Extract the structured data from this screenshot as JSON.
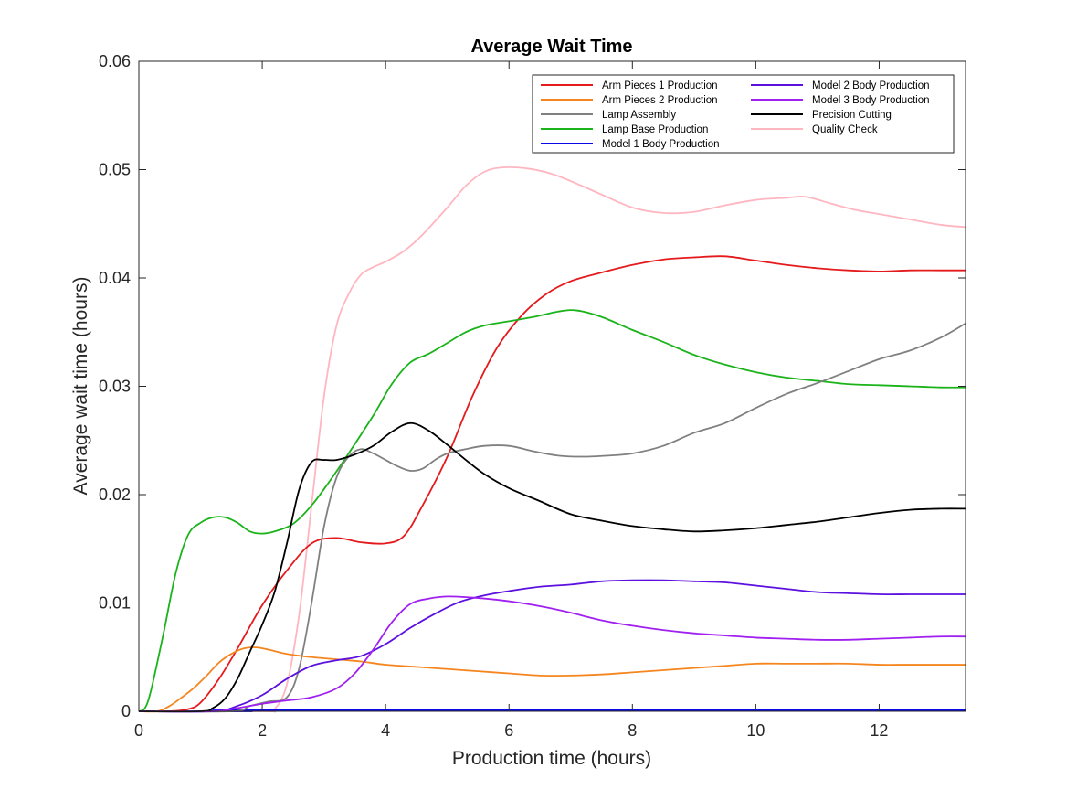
{
  "chart_data": {
    "type": "line",
    "title": "Average Wait Time",
    "xlabel": "Production time (hours)",
    "ylabel": "Average wait time (hours)",
    "xlim": [
      0,
      13.4
    ],
    "ylim": [
      0,
      0.06
    ],
    "xticks": [
      0,
      2,
      4,
      6,
      8,
      10,
      12
    ],
    "xtick_labels": [
      "0",
      "2",
      "4",
      "6",
      "8",
      "10",
      "12"
    ],
    "yticks": [
      0,
      0.01,
      0.02,
      0.03,
      0.04,
      0.05,
      0.06
    ],
    "ytick_labels": [
      "0",
      "0.01",
      "0.02",
      "0.03",
      "0.04",
      "0.05",
      "0.06"
    ],
    "grid": false,
    "legend_position": "top-right",
    "series": [
      {
        "name": "Arm Pieces 1 Production",
        "color": "#e41a1c",
        "points": [
          [
            0,
            0
          ],
          [
            0.5,
            0
          ],
          [
            0.8,
            0.0002
          ],
          [
            1.0,
            0.0008
          ],
          [
            1.3,
            0.003
          ],
          [
            1.6,
            0.0058
          ],
          [
            2.0,
            0.0098
          ],
          [
            2.4,
            0.013
          ],
          [
            2.8,
            0.0155
          ],
          [
            3.2,
            0.016
          ],
          [
            3.6,
            0.0156
          ],
          [
            4.0,
            0.0155
          ],
          [
            4.3,
            0.0162
          ],
          [
            4.6,
            0.019
          ],
          [
            5.0,
            0.0235
          ],
          [
            5.4,
            0.029
          ],
          [
            5.8,
            0.0335
          ],
          [
            6.2,
            0.0365
          ],
          [
            6.6,
            0.0385
          ],
          [
            7.0,
            0.0397
          ],
          [
            7.5,
            0.0405
          ],
          [
            8.0,
            0.0412
          ],
          [
            8.5,
            0.0417
          ],
          [
            9.0,
            0.0419
          ],
          [
            9.5,
            0.042
          ],
          [
            10.0,
            0.0416
          ],
          [
            10.5,
            0.0412
          ],
          [
            11.0,
            0.0409
          ],
          [
            11.5,
            0.0407
          ],
          [
            12.0,
            0.0406
          ],
          [
            12.5,
            0.0407
          ],
          [
            13.0,
            0.0407
          ],
          [
            13.4,
            0.0407
          ]
        ]
      },
      {
        "name": "Arm Pieces 2 Production",
        "color": "#f5861f",
        "points": [
          [
            0,
            0
          ],
          [
            0.3,
            0
          ],
          [
            0.5,
            0.0005
          ],
          [
            0.7,
            0.0013
          ],
          [
            0.9,
            0.0022
          ],
          [
            1.1,
            0.0033
          ],
          [
            1.3,
            0.0045
          ],
          [
            1.5,
            0.0053
          ],
          [
            1.7,
            0.0058
          ],
          [
            1.9,
            0.0059
          ],
          [
            2.1,
            0.0057
          ],
          [
            2.4,
            0.0053
          ],
          [
            2.8,
            0.005
          ],
          [
            3.2,
            0.0048
          ],
          [
            3.6,
            0.0046
          ],
          [
            4.0,
            0.0043
          ],
          [
            4.5,
            0.0041
          ],
          [
            5.0,
            0.0039
          ],
          [
            5.5,
            0.0037
          ],
          [
            6.0,
            0.0035
          ],
          [
            6.5,
            0.0033
          ],
          [
            7.0,
            0.0033
          ],
          [
            7.5,
            0.0034
          ],
          [
            8.0,
            0.0036
          ],
          [
            8.5,
            0.0038
          ],
          [
            9.0,
            0.004
          ],
          [
            9.5,
            0.0042
          ],
          [
            10.0,
            0.0044
          ],
          [
            10.5,
            0.0044
          ],
          [
            11.0,
            0.0044
          ],
          [
            11.5,
            0.0044
          ],
          [
            12.0,
            0.0043
          ],
          [
            12.5,
            0.0043
          ],
          [
            13.0,
            0.0043
          ],
          [
            13.4,
            0.0043
          ]
        ]
      },
      {
        "name": "Lamp Assembly",
        "color": "#808080",
        "points": [
          [
            0,
            0
          ],
          [
            1.5,
            0
          ],
          [
            1.8,
            0.0005
          ],
          [
            2.1,
            0.0009
          ],
          [
            2.4,
            0.0013
          ],
          [
            2.6,
            0.004
          ],
          [
            2.8,
            0.01
          ],
          [
            3.0,
            0.017
          ],
          [
            3.2,
            0.0215
          ],
          [
            3.4,
            0.0235
          ],
          [
            3.6,
            0.0242
          ],
          [
            3.8,
            0.0238
          ],
          [
            4.0,
            0.0232
          ],
          [
            4.2,
            0.0226
          ],
          [
            4.4,
            0.0222
          ],
          [
            4.6,
            0.0224
          ],
          [
            4.8,
            0.0232
          ],
          [
            5.0,
            0.0238
          ],
          [
            5.3,
            0.0242
          ],
          [
            5.6,
            0.0245
          ],
          [
            6.0,
            0.0245
          ],
          [
            6.4,
            0.024
          ],
          [
            6.8,
            0.0236
          ],
          [
            7.2,
            0.0235
          ],
          [
            7.6,
            0.0236
          ],
          [
            8.0,
            0.0238
          ],
          [
            8.5,
            0.0245
          ],
          [
            9.0,
            0.0257
          ],
          [
            9.5,
            0.0266
          ],
          [
            10.0,
            0.028
          ],
          [
            10.5,
            0.0293
          ],
          [
            11.0,
            0.0303
          ],
          [
            11.5,
            0.0314
          ],
          [
            12.0,
            0.0325
          ],
          [
            12.5,
            0.0333
          ],
          [
            13.0,
            0.0345
          ],
          [
            13.4,
            0.0358
          ]
        ]
      },
      {
        "name": "Lamp Base Production",
        "color": "#1ab31a",
        "points": [
          [
            0,
            0
          ],
          [
            0.1,
            0.0003
          ],
          [
            0.2,
            0.002
          ],
          [
            0.4,
            0.0072
          ],
          [
            0.6,
            0.0128
          ],
          [
            0.8,
            0.0163
          ],
          [
            1.0,
            0.0174
          ],
          [
            1.2,
            0.0179
          ],
          [
            1.4,
            0.0179
          ],
          [
            1.6,
            0.0174
          ],
          [
            1.8,
            0.0166
          ],
          [
            2.0,
            0.0164
          ],
          [
            2.2,
            0.0166
          ],
          [
            2.5,
            0.0173
          ],
          [
            2.8,
            0.019
          ],
          [
            3.1,
            0.0213
          ],
          [
            3.4,
            0.0238
          ],
          [
            3.8,
            0.0273
          ],
          [
            4.1,
            0.0302
          ],
          [
            4.4,
            0.0322
          ],
          [
            4.7,
            0.033
          ],
          [
            5.0,
            0.034
          ],
          [
            5.3,
            0.035
          ],
          [
            5.6,
            0.0356
          ],
          [
            6.0,
            0.036
          ],
          [
            6.4,
            0.0364
          ],
          [
            6.8,
            0.0369
          ],
          [
            7.1,
            0.037
          ],
          [
            7.5,
            0.0364
          ],
          [
            8.0,
            0.0352
          ],
          [
            8.5,
            0.0341
          ],
          [
            9.0,
            0.0329
          ],
          [
            9.5,
            0.032
          ],
          [
            10.0,
            0.0313
          ],
          [
            10.5,
            0.0308
          ],
          [
            11.0,
            0.0305
          ],
          [
            11.5,
            0.0302
          ],
          [
            12.0,
            0.0301
          ],
          [
            12.5,
            0.03
          ],
          [
            13.0,
            0.0299
          ],
          [
            13.4,
            0.0299
          ]
        ]
      },
      {
        "name": "Model 1 Body Production",
        "color": "#0a0ae6",
        "points": [
          [
            0,
            0
          ],
          [
            1.8,
            0
          ],
          [
            2.0,
            0.0001
          ],
          [
            13.4,
            0.0001
          ]
        ]
      },
      {
        "name": "Model 2 Body Production",
        "color": "#5c10e0",
        "points": [
          [
            0,
            0
          ],
          [
            1.2,
            0
          ],
          [
            1.6,
            0.0005
          ],
          [
            2.0,
            0.0015
          ],
          [
            2.4,
            0.003
          ],
          [
            2.8,
            0.0042
          ],
          [
            3.2,
            0.0047
          ],
          [
            3.6,
            0.0051
          ],
          [
            4.0,
            0.0062
          ],
          [
            4.4,
            0.0077
          ],
          [
            4.8,
            0.009
          ],
          [
            5.2,
            0.0101
          ],
          [
            5.6,
            0.0107
          ],
          [
            6.0,
            0.0111
          ],
          [
            6.5,
            0.0115
          ],
          [
            7.0,
            0.0117
          ],
          [
            7.5,
            0.012
          ],
          [
            8.0,
            0.0121
          ],
          [
            8.5,
            0.0121
          ],
          [
            9.0,
            0.012
          ],
          [
            9.5,
            0.0119
          ],
          [
            10.0,
            0.0116
          ],
          [
            10.5,
            0.0113
          ],
          [
            11.0,
            0.011
          ],
          [
            11.5,
            0.0109
          ],
          [
            12.0,
            0.0108
          ],
          [
            12.5,
            0.0108
          ],
          [
            13.0,
            0.0108
          ],
          [
            13.4,
            0.0108
          ]
        ]
      },
      {
        "name": "Model 3 Body Production",
        "color": "#a020f0",
        "points": [
          [
            0,
            0
          ],
          [
            1.2,
            0
          ],
          [
            1.6,
            0.0003
          ],
          [
            2.0,
            0.0007
          ],
          [
            2.4,
            0.001
          ],
          [
            2.8,
            0.0013
          ],
          [
            3.2,
            0.0021
          ],
          [
            3.5,
            0.0035
          ],
          [
            3.8,
            0.0057
          ],
          [
            4.1,
            0.0082
          ],
          [
            4.4,
            0.0099
          ],
          [
            4.7,
            0.0104
          ],
          [
            5.0,
            0.0106
          ],
          [
            5.4,
            0.0105
          ],
          [
            5.8,
            0.0103
          ],
          [
            6.2,
            0.01
          ],
          [
            6.6,
            0.0096
          ],
          [
            7.0,
            0.0091
          ],
          [
            7.5,
            0.0084
          ],
          [
            8.0,
            0.0079
          ],
          [
            8.5,
            0.0075
          ],
          [
            9.0,
            0.0072
          ],
          [
            9.5,
            0.007
          ],
          [
            10.0,
            0.0068
          ],
          [
            10.5,
            0.0067
          ],
          [
            11.0,
            0.0066
          ],
          [
            11.5,
            0.0066
          ],
          [
            12.0,
            0.0067
          ],
          [
            12.5,
            0.0068
          ],
          [
            13.0,
            0.0069
          ],
          [
            13.4,
            0.0069
          ]
        ]
      },
      {
        "name": "Precision Cutting",
        "color": "#000000",
        "points": [
          [
            0,
            0
          ],
          [
            1.0,
            0
          ],
          [
            1.2,
            0.0003
          ],
          [
            1.4,
            0.0012
          ],
          [
            1.6,
            0.003
          ],
          [
            1.8,
            0.0055
          ],
          [
            2.0,
            0.008
          ],
          [
            2.2,
            0.011
          ],
          [
            2.4,
            0.0155
          ],
          [
            2.6,
            0.0205
          ],
          [
            2.8,
            0.023
          ],
          [
            3.0,
            0.0232
          ],
          [
            3.2,
            0.0232
          ],
          [
            3.5,
            0.0237
          ],
          [
            3.8,
            0.0245
          ],
          [
            4.1,
            0.0258
          ],
          [
            4.4,
            0.0266
          ],
          [
            4.7,
            0.0259
          ],
          [
            5.0,
            0.0246
          ],
          [
            5.3,
            0.0232
          ],
          [
            5.6,
            0.0219
          ],
          [
            6.0,
            0.0206
          ],
          [
            6.5,
            0.0194
          ],
          [
            7.0,
            0.0182
          ],
          [
            7.5,
            0.0176
          ],
          [
            8.0,
            0.0171
          ],
          [
            8.5,
            0.0168
          ],
          [
            9.0,
            0.0166
          ],
          [
            9.5,
            0.0167
          ],
          [
            10.0,
            0.0169
          ],
          [
            10.5,
            0.0172
          ],
          [
            11.0,
            0.0175
          ],
          [
            11.5,
            0.0179
          ],
          [
            12.0,
            0.0183
          ],
          [
            12.5,
            0.0186
          ],
          [
            13.0,
            0.0187
          ],
          [
            13.4,
            0.0187
          ]
        ]
      },
      {
        "name": "Quality Check",
        "color": "#ffb6c1",
        "points": [
          [
            0,
            0
          ],
          [
            2.0,
            0
          ],
          [
            2.2,
            0.0002
          ],
          [
            2.4,
            0.0025
          ],
          [
            2.6,
            0.009
          ],
          [
            2.8,
            0.019
          ],
          [
            3.0,
            0.029
          ],
          [
            3.2,
            0.0355
          ],
          [
            3.4,
            0.0385
          ],
          [
            3.6,
            0.0403
          ],
          [
            3.8,
            0.041
          ],
          [
            4.0,
            0.0415
          ],
          [
            4.3,
            0.0425
          ],
          [
            4.6,
            0.044
          ],
          [
            5.0,
            0.0465
          ],
          [
            5.3,
            0.0485
          ],
          [
            5.6,
            0.0498
          ],
          [
            5.9,
            0.0502
          ],
          [
            6.3,
            0.0501
          ],
          [
            6.7,
            0.0496
          ],
          [
            7.1,
            0.0487
          ],
          [
            7.5,
            0.0477
          ],
          [
            8.0,
            0.0465
          ],
          [
            8.5,
            0.046
          ],
          [
            9.0,
            0.0461
          ],
          [
            9.5,
            0.0467
          ],
          [
            10.0,
            0.0472
          ],
          [
            10.5,
            0.0474
          ],
          [
            10.8,
            0.0475
          ],
          [
            11.2,
            0.0469
          ],
          [
            11.6,
            0.0463
          ],
          [
            12.0,
            0.0459
          ],
          [
            12.5,
            0.0454
          ],
          [
            13.0,
            0.0449
          ],
          [
            13.4,
            0.0447
          ]
        ]
      }
    ]
  }
}
